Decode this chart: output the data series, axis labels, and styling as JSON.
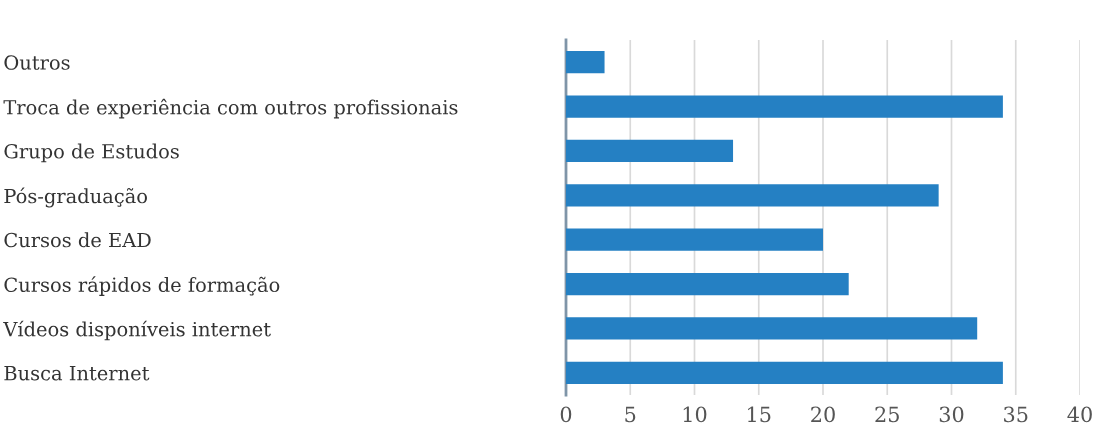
{
  "chart_data": {
    "type": "bar",
    "orientation": "horizontal",
    "categories": [
      "Outros",
      "Troca de experiência com outros profissionais",
      "Grupo de Estudos",
      "Pós-graduação",
      "Cursos de EAD",
      "Cursos rápidos de formação",
      "Vídeos disponíveis internet",
      "Busca Internet"
    ],
    "values": [
      3,
      34,
      13,
      29,
      20,
      22,
      32,
      34
    ],
    "color": "#2580c3",
    "xlim": [
      0,
      40
    ],
    "xticks": [
      0,
      5,
      10,
      15,
      20,
      25,
      30,
      35,
      40
    ],
    "grid": "x",
    "legend": false
  }
}
